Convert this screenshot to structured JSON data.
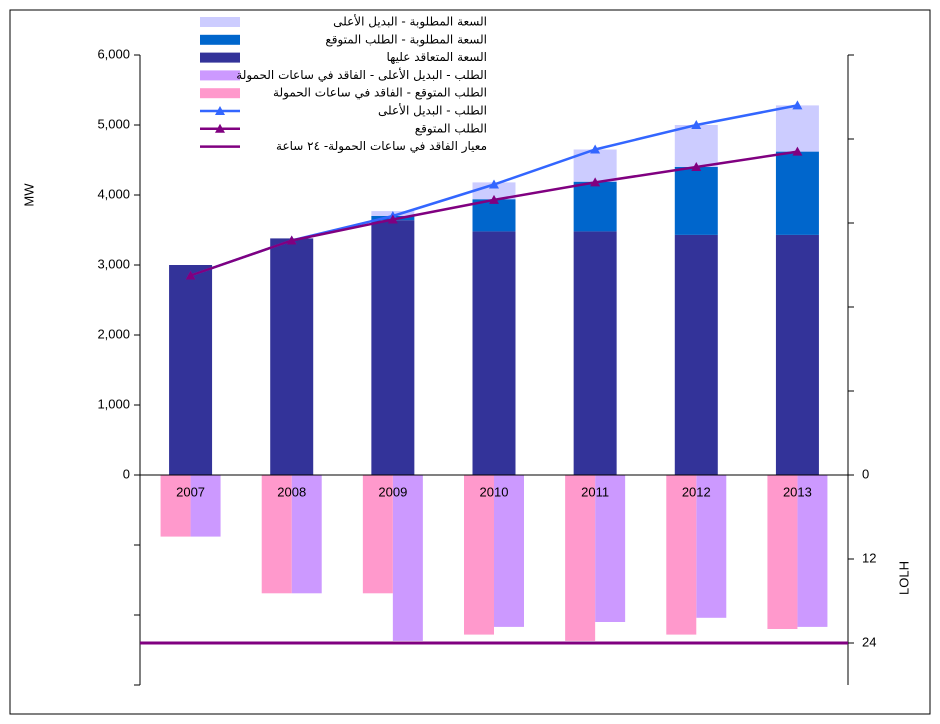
{
  "chart_data": {
    "type": "combo",
    "categories": [
      "2007",
      "2008",
      "2009",
      "2010",
      "2011",
      "2012",
      "2013"
    ],
    "y_label": "MW",
    "y2_label": "LOLH",
    "ylim": [
      -3000,
      6000
    ],
    "yticks": [
      0,
      {
        "value": 1000,
        "label": "1,000"
      },
      {
        "value": 2000,
        "label": "2,000"
      },
      {
        "value": 3000,
        "label": "3,000"
      },
      {
        "value": 4000,
        "label": "4,000"
      },
      {
        "value": 5000,
        "label": "5,000"
      },
      {
        "value": 6000,
        "label": "6,000"
      }
    ],
    "y2lim": [
      30,
      -60
    ],
    "y2ticks": [
      0,
      12,
      24
    ],
    "series": [
      {
        "name": "السعة المطلوبة - البديل الأعلى",
        "type": "bar",
        "stack": "mw",
        "color": "#ccccff",
        "values": [
          0,
          0,
          70,
          240,
          460,
          600,
          660
        ]
      },
      {
        "name": "السعة المطلوبة - الطلب المتوقع",
        "type": "bar",
        "stack": "mw",
        "color": "#0066cc",
        "values": [
          0,
          0,
          60,
          460,
          710,
          970,
          1190
        ]
      },
      {
        "name": "السعة المتعاقد عليها",
        "type": "bar",
        "stack": "mw",
        "color": "#333399",
        "values": [
          3000,
          3380,
          3640,
          3480,
          3480,
          3430,
          3430
        ]
      },
      {
        "name": "الطلب - البديل الأعلى - الفاقد في ساعات الحمولة",
        "type": "bar",
        "axis": "y2",
        "slot": "right",
        "color": "#cc99ff",
        "values": [
          8.8,
          16.9,
          23.7,
          21.7,
          21,
          20.4,
          21.7
        ]
      },
      {
        "name": "الطلب المتوقع - الفاقد في ساعات الحمولة",
        "type": "bar",
        "axis": "y2",
        "slot": "left",
        "color": "#ff99cc",
        "values": [
          8.8,
          16.9,
          16.9,
          22.8,
          23.7,
          22.8,
          22
        ]
      },
      {
        "name": "الطلب - البديل الأعلى",
        "type": "line",
        "color": "#3366ff",
        "values": [
          2850,
          3350,
          3700,
          4150,
          4650,
          5000,
          5280
        ]
      },
      {
        "name": "الطلب المتوقع",
        "type": "line",
        "color": "#800080",
        "values": [
          2850,
          3350,
          3650,
          3930,
          4180,
          4400,
          4620
        ]
      }
    ],
    "reference_line": {
      "name": "معيار الفاقد في ساعات الحمولة- ٢٤ ساعة",
      "value": 24,
      "axis": "y2",
      "color": "#800080"
    }
  }
}
